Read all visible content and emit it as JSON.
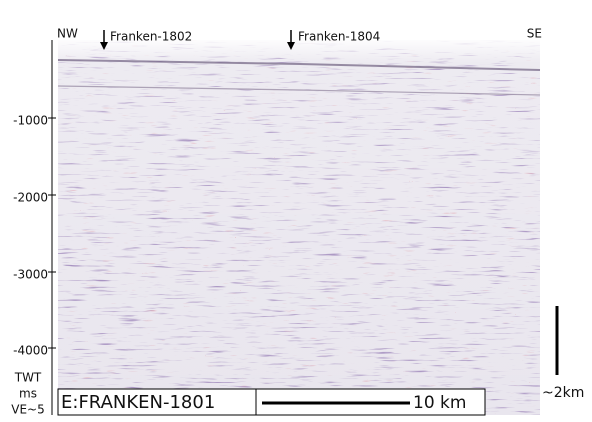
{
  "header": {
    "left": "NW",
    "right": "SE"
  },
  "wells": [
    {
      "label": "Franken-1802"
    },
    {
      "label": "Franken-1804"
    }
  ],
  "axis": {
    "ticks": [
      -1000,
      -2000,
      -3000,
      -4000
    ],
    "unit_lines": [
      "TWT",
      "ms",
      "VE~5"
    ]
  },
  "footer": {
    "line_name": "E:FRANKEN-1801",
    "scale_label": "10 km",
    "vertical_scale": "~2km"
  }
}
